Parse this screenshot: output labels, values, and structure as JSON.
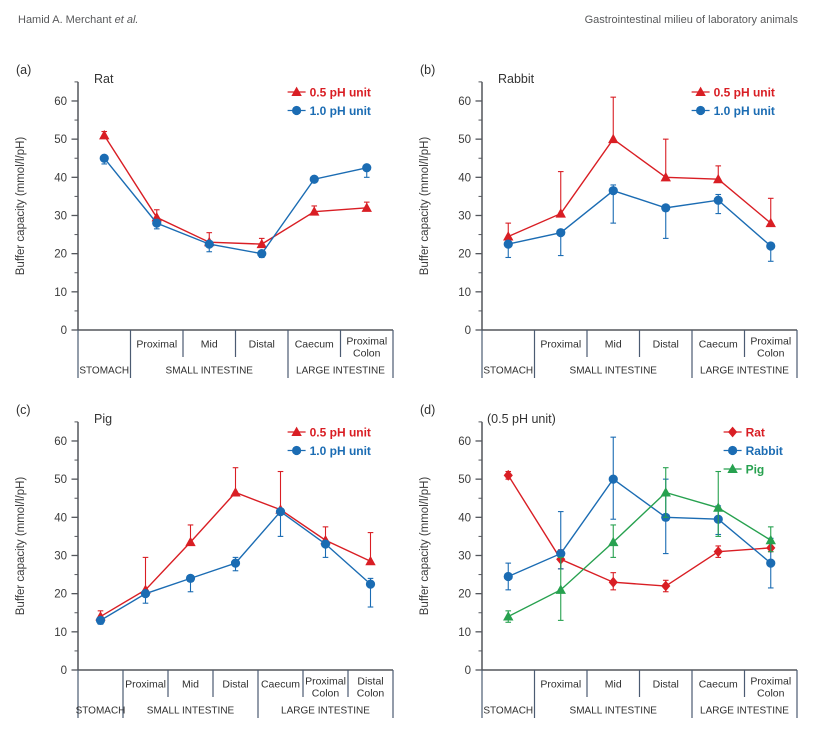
{
  "header": {
    "left_author_main": "Hamid A. Merchant ",
    "left_author_suffix": "et al.",
    "right_title": "Gastrointestinal milieu of laboratory animals"
  },
  "colors": {
    "red": "#d91e24",
    "blue": "#1b6cb3",
    "green": "#27a14f",
    "axis": "#53565c",
    "divider": "#4b5b72",
    "text": "#3b3b3b",
    "label": "#2f2f2f",
    "title": "#333333"
  },
  "chart_data": [
    {
      "key": "a",
      "panel_label": "(a)",
      "title": "Rat",
      "type": "line",
      "ylabel": "Buffer capacity (mmol/l/pH)",
      "ylim": [
        0,
        65
      ],
      "yticks": [
        0,
        10,
        20,
        30,
        40,
        50,
        60
      ],
      "minor_step": 5,
      "segment_labels": [
        "",
        "Proximal",
        "Mid",
        "Distal",
        "Caecum",
        "Proximal|Colon"
      ],
      "groups": [
        {
          "label": "STOMACH",
          "from": 0,
          "to": 1
        },
        {
          "label": "SMALL INTESTINE",
          "from": 1,
          "to": 4
        },
        {
          "label": "LARGE INTESTINE",
          "from": 4,
          "to": 6
        }
      ],
      "legend": [
        {
          "name": "0.5 pH unit",
          "color_key": "red",
          "marker": "triangle"
        },
        {
          "name": "1.0 pH unit",
          "color_key": "blue",
          "marker": "circle"
        }
      ],
      "series": [
        {
          "name": "0.5 pH unit",
          "color_key": "red",
          "marker": "triangle",
          "values": [
            51,
            29.5,
            23,
            22.5,
            31,
            32
          ],
          "err_low": [
            51,
            29.5,
            23,
            22.5,
            31,
            32
          ],
          "err_high": [
            52,
            31.5,
            25.5,
            24,
            32.5,
            33.5
          ]
        },
        {
          "name": "1.0 pH unit",
          "color_key": "blue",
          "marker": "circle",
          "values": [
            45,
            28,
            22.5,
            20,
            39.5,
            42.5
          ],
          "err_low": [
            43.5,
            26.5,
            20.5,
            19,
            39.5,
            40
          ],
          "err_high": [
            45,
            28,
            22.5,
            20,
            39.5,
            42.5
          ]
        }
      ]
    },
    {
      "key": "b",
      "panel_label": "(b)",
      "title": "Rabbit",
      "type": "line",
      "ylabel": "Buffer capacity (mmol/l/pH)",
      "ylim": [
        0,
        65
      ],
      "yticks": [
        0,
        10,
        20,
        30,
        40,
        50,
        60
      ],
      "minor_step": 5,
      "segment_labels": [
        "",
        "Proximal",
        "Mid",
        "Distal",
        "Caecum",
        "Proximal|Colon"
      ],
      "groups": [
        {
          "label": "STOMACH",
          "from": 0,
          "to": 1
        },
        {
          "label": "SMALL INTESTINE",
          "from": 1,
          "to": 4
        },
        {
          "label": "LARGE INTESTINE",
          "from": 4,
          "to": 6
        }
      ],
      "legend": [
        {
          "name": "0.5 pH unit",
          "color_key": "red",
          "marker": "triangle"
        },
        {
          "name": "1.0 pH unit",
          "color_key": "blue",
          "marker": "circle"
        }
      ],
      "series": [
        {
          "name": "0.5 pH unit",
          "color_key": "red",
          "marker": "triangle",
          "values": [
            24.5,
            30.5,
            50,
            40,
            39.5,
            28
          ],
          "err_low": [
            23,
            30.5,
            50,
            40,
            39.5,
            28
          ],
          "err_high": [
            28,
            41.5,
            61,
            50,
            43,
            34.5
          ]
        },
        {
          "name": "1.0 pH unit",
          "color_key": "blue",
          "marker": "circle",
          "values": [
            22.5,
            25.5,
            36.5,
            32,
            34,
            22
          ],
          "err_low": [
            19,
            19.5,
            28,
            24,
            30.5,
            18
          ],
          "err_high": [
            22.5,
            25.5,
            38,
            32,
            35.5,
            22
          ]
        }
      ]
    },
    {
      "key": "c",
      "panel_label": "(c)",
      "title": "Pig",
      "type": "line",
      "ylabel": "Buffer capacity (mmol/l/pH)",
      "ylim": [
        0,
        65
      ],
      "yticks": [
        0,
        10,
        20,
        30,
        40,
        50,
        60
      ],
      "minor_step": 5,
      "segment_labels": [
        "",
        "Proximal",
        "Mid",
        "Distal",
        "Caecum",
        "Proximal|Colon",
        "Distal|Colon"
      ],
      "groups": [
        {
          "label": "STOMACH",
          "from": 0,
          "to": 1
        },
        {
          "label": "SMALL INTESTINE",
          "from": 1,
          "to": 4
        },
        {
          "label": "LARGE INTESTINE",
          "from": 4,
          "to": 7
        }
      ],
      "legend": [
        {
          "name": "0.5 pH unit",
          "color_key": "red",
          "marker": "triangle"
        },
        {
          "name": "1.0 pH unit",
          "color_key": "blue",
          "marker": "circle"
        }
      ],
      "series": [
        {
          "name": "0.5 pH unit",
          "color_key": "red",
          "marker": "triangle",
          "values": [
            14,
            21,
            33.5,
            46.5,
            42,
            34,
            28.5
          ],
          "err_low": [
            14,
            21,
            33.5,
            46.5,
            42,
            34,
            28.5
          ],
          "err_high": [
            15.5,
            29.5,
            38,
            53,
            52,
            37.5,
            36
          ]
        },
        {
          "name": "1.0 pH unit",
          "color_key": "blue",
          "marker": "circle",
          "values": [
            13,
            20,
            24,
            28,
            41.5,
            33,
            22.5
          ],
          "err_low": [
            12,
            17.5,
            20.5,
            26,
            35,
            29.5,
            16.5
          ],
          "err_high": [
            13,
            20,
            24,
            29.5,
            41.5,
            33,
            24
          ]
        }
      ]
    },
    {
      "key": "d",
      "panel_label": "(d)",
      "title": "(0.5 pH unit)",
      "type": "line",
      "ylabel": "Buffer capacity (mmol/l/pH)",
      "ylim": [
        0,
        65
      ],
      "yticks": [
        0,
        10,
        20,
        30,
        40,
        50,
        60
      ],
      "minor_step": 5,
      "segment_labels": [
        "",
        "Proximal",
        "Mid",
        "Distal",
        "Caecum",
        "Proximal|Colon"
      ],
      "groups": [
        {
          "label": "STOMACH",
          "from": 0,
          "to": 1
        },
        {
          "label": "SMALL INTESTINE",
          "from": 1,
          "to": 4
        },
        {
          "label": "LARGE INTESTINE",
          "from": 4,
          "to": 6
        }
      ],
      "legend": [
        {
          "name": "Rat",
          "color_key": "red",
          "marker": "diamond"
        },
        {
          "name": "Rabbit",
          "color_key": "blue",
          "marker": "circle"
        },
        {
          "name": "Pig",
          "color_key": "green",
          "marker": "triangle"
        }
      ],
      "series": [
        {
          "name": "Rat",
          "color_key": "red",
          "marker": "diamond",
          "values": [
            51,
            29,
            23,
            22,
            31,
            32
          ],
          "err_low": [
            50,
            26.5,
            21,
            20.5,
            29.5,
            31
          ],
          "err_high": [
            52,
            31.5,
            25.5,
            23.5,
            32.5,
            33.5
          ]
        },
        {
          "name": "Rabbit",
          "color_key": "blue",
          "marker": "circle",
          "values": [
            24.5,
            30.5,
            50,
            40,
            39.5,
            28
          ],
          "err_low": [
            21,
            26.5,
            39.5,
            30.5,
            35.5,
            21.5
          ],
          "err_high": [
            28,
            41.5,
            61,
            50,
            43,
            34.5
          ]
        },
        {
          "name": "Pig",
          "color_key": "green",
          "marker": "triangle",
          "values": [
            14,
            21,
            33.5,
            46.5,
            42.5,
            34
          ],
          "err_low": [
            12.5,
            13,
            29.5,
            40,
            35,
            31
          ],
          "err_high": [
            15.5,
            29.5,
            38,
            53,
            52,
            37.5
          ]
        }
      ]
    }
  ]
}
